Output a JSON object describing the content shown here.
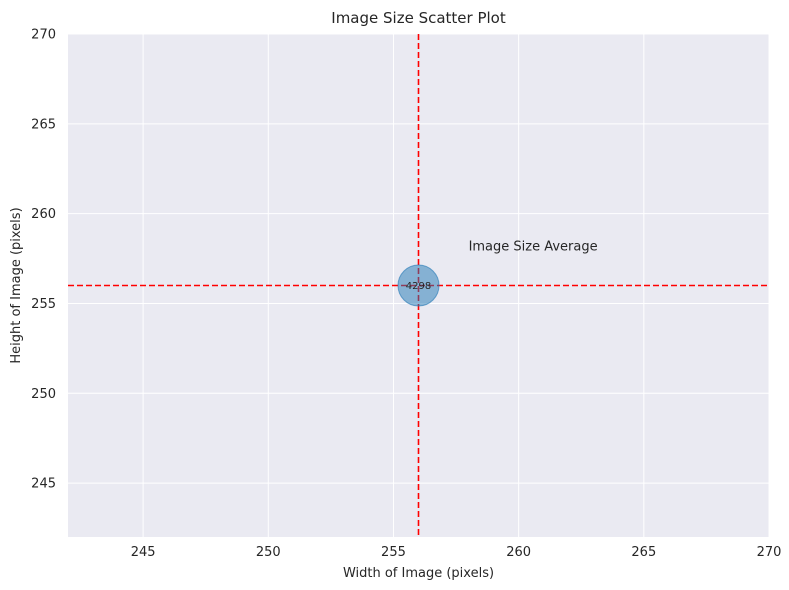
{
  "chart_data": {
    "type": "scatter",
    "title": "Image Size Scatter Plot",
    "xlabel": "Width of Image (pixels)",
    "ylabel": "Height of Image (pixels)",
    "xlim": [
      242,
      270
    ],
    "ylim": [
      242,
      270
    ],
    "xticks": [
      245,
      250,
      255,
      260,
      265,
      270
    ],
    "yticks": [
      245,
      250,
      255,
      260,
      265,
      270
    ],
    "grid": true,
    "points": [
      {
        "x": 256,
        "y": 256,
        "label": "4298",
        "color": "#1f77b4"
      }
    ],
    "reference_lines": {
      "vertical_x": 256,
      "horizontal_y": 256,
      "color": "#ff0000",
      "style": "dashed"
    },
    "annotation": {
      "text": "Image Size Average",
      "x": 258,
      "y": 258.2
    },
    "colors": {
      "plot_background": "#eaeaf2",
      "grid": "#ffffff",
      "text": "#262626"
    }
  }
}
